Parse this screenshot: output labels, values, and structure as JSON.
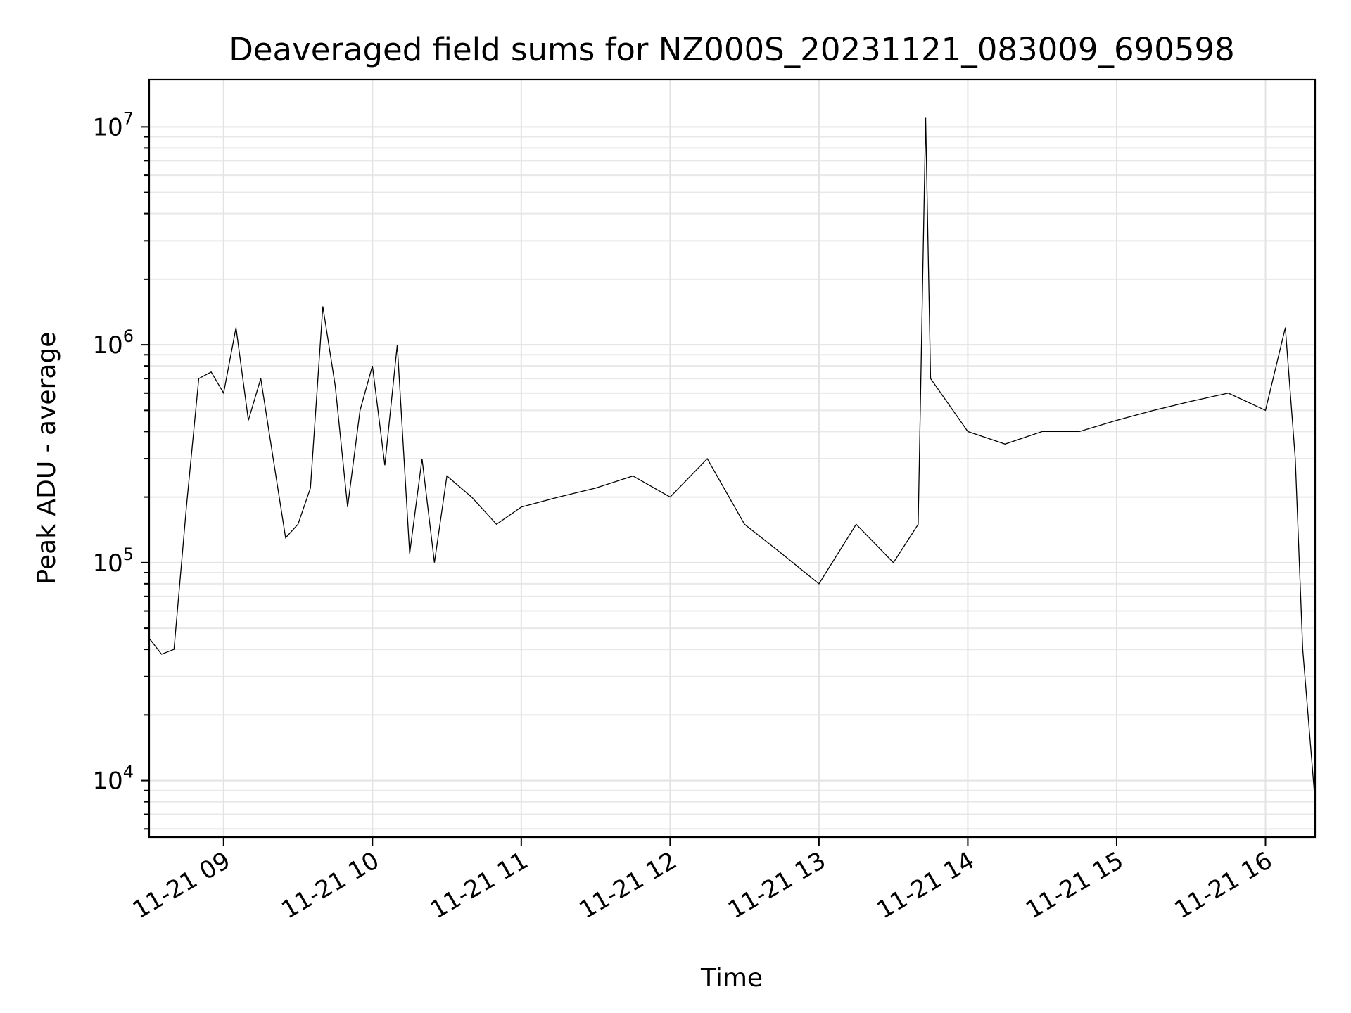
{
  "chart_data": {
    "type": "line",
    "title": "Deaveraged field sums for NZ000S_20231121_083009_690598",
    "xlabel": "Time",
    "ylabel": "Peak ADU - average",
    "yscale": "log",
    "ylim": [
      5500,
      16500000
    ],
    "xlim": [
      "2023-11-21 08:30",
      "2023-11-21 16:20"
    ],
    "grid": true,
    "legend": "none",
    "line_color": "#000000",
    "x_ticks": [
      {
        "value": "2023-11-21 09:00",
        "label": "11-21 09"
      },
      {
        "value": "2023-11-21 10:00",
        "label": "11-21 10"
      },
      {
        "value": "2023-11-21 11:00",
        "label": "11-21 11"
      },
      {
        "value": "2023-11-21 12:00",
        "label": "11-21 12"
      },
      {
        "value": "2023-11-21 13:00",
        "label": "11-21 13"
      },
      {
        "value": "2023-11-21 14:00",
        "label": "11-21 14"
      },
      {
        "value": "2023-11-21 15:00",
        "label": "11-21 15"
      },
      {
        "value": "2023-11-21 16:00",
        "label": "11-21 16"
      }
    ],
    "y_ticks": [
      {
        "value": 10000,
        "base": "10",
        "exp": "4"
      },
      {
        "value": 100000,
        "base": "10",
        "exp": "5"
      },
      {
        "value": 1000000,
        "base": "10",
        "exp": "6"
      },
      {
        "value": 10000000,
        "base": "10",
        "exp": "7"
      }
    ],
    "series": [
      {
        "points": [
          [
            "2023-11-21 08:30",
            45000
          ],
          [
            "2023-11-21 08:35",
            38000
          ],
          [
            "2023-11-21 08:40",
            40000
          ],
          [
            "2023-11-21 08:45",
            180000
          ],
          [
            "2023-11-21 08:50",
            700000
          ],
          [
            "2023-11-21 08:55",
            750000
          ],
          [
            "2023-11-21 09:00",
            600000
          ],
          [
            "2023-11-21 09:05",
            1200000
          ],
          [
            "2023-11-21 09:10",
            450000
          ],
          [
            "2023-11-21 09:15",
            700000
          ],
          [
            "2023-11-21 09:20",
            300000
          ],
          [
            "2023-11-21 09:25",
            130000
          ],
          [
            "2023-11-21 09:30",
            150000
          ],
          [
            "2023-11-21 09:35",
            220000
          ],
          [
            "2023-11-21 09:40",
            1500000
          ],
          [
            "2023-11-21 09:45",
            650000
          ],
          [
            "2023-11-21 09:50",
            180000
          ],
          [
            "2023-11-21 09:55",
            500000
          ],
          [
            "2023-11-21 10:00",
            800000
          ],
          [
            "2023-11-21 10:05",
            280000
          ],
          [
            "2023-11-21 10:10",
            1000000
          ],
          [
            "2023-11-21 10:15",
            110000
          ],
          [
            "2023-11-21 10:20",
            300000
          ],
          [
            "2023-11-21 10:25",
            100000
          ],
          [
            "2023-11-21 10:30",
            250000
          ],
          [
            "2023-11-21 10:40",
            200000
          ],
          [
            "2023-11-21 10:50",
            150000
          ],
          [
            "2023-11-21 11:00",
            180000
          ],
          [
            "2023-11-21 11:15",
            200000
          ],
          [
            "2023-11-21 11:30",
            220000
          ],
          [
            "2023-11-21 11:45",
            250000
          ],
          [
            "2023-11-21 12:00",
            200000
          ],
          [
            "2023-11-21 12:15",
            300000
          ],
          [
            "2023-11-21 12:30",
            150000
          ],
          [
            "2023-11-21 12:45",
            110000
          ],
          [
            "2023-11-21 13:00",
            80000
          ],
          [
            "2023-11-21 13:15",
            150000
          ],
          [
            "2023-11-21 13:30",
            100000
          ],
          [
            "2023-11-21 13:40",
            150000
          ],
          [
            "2023-11-21 13:43",
            11000000
          ],
          [
            "2023-11-21 13:45",
            700000
          ],
          [
            "2023-11-21 14:00",
            400000
          ],
          [
            "2023-11-21 14:15",
            350000
          ],
          [
            "2023-11-21 14:30",
            400000
          ],
          [
            "2023-11-21 14:45",
            400000
          ],
          [
            "2023-11-21 15:00",
            450000
          ],
          [
            "2023-11-21 15:15",
            500000
          ],
          [
            "2023-11-21 15:30",
            550000
          ],
          [
            "2023-11-21 15:45",
            600000
          ],
          [
            "2023-11-21 16:00",
            500000
          ],
          [
            "2023-11-21 16:08",
            1200000
          ],
          [
            "2023-11-21 16:12",
            300000
          ],
          [
            "2023-11-21 16:15",
            40000
          ],
          [
            "2023-11-21 16:20",
            8000
          ]
        ]
      }
    ]
  }
}
